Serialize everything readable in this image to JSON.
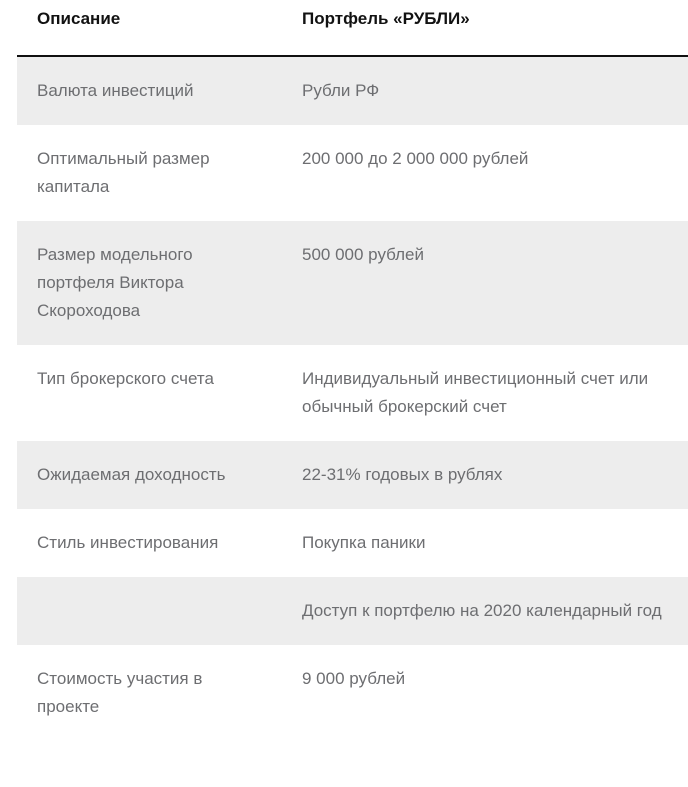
{
  "colors": {
    "page_bg": "#ffffff",
    "row_alt_bg": "#ededed",
    "body_text": "#6d6e71",
    "header_text": "#121212",
    "header_border": "#101010"
  },
  "table": {
    "header": {
      "description": "Описание",
      "portfolio": "Портфель «РУБЛИ»"
    },
    "rows": [
      {
        "label": "Валюта инвестиций",
        "value": "Рубли РФ"
      },
      {
        "label": "Оптимальный размер капитала",
        "value": "200 000 до 2 000 000 рублей"
      },
      {
        "label": "Размер модельного портфеля Виктора Скороходова",
        "value": "500 000 рублей"
      },
      {
        "label": "Тип брокерского счета",
        "value": "Индивидуальный инвестиционный счет или обычный брокерский счет"
      },
      {
        "label": "Ожидаемая доходность",
        "value": "22-31% годовых в рублях"
      },
      {
        "label": "Стиль инвестирования",
        "value": "Покупка паники"
      },
      {
        "label": "",
        "value": "Доступ к портфелю на 2020 календарный год"
      },
      {
        "label": "Стоимость участия в проекте",
        "value": "9 000 рублей"
      }
    ]
  }
}
